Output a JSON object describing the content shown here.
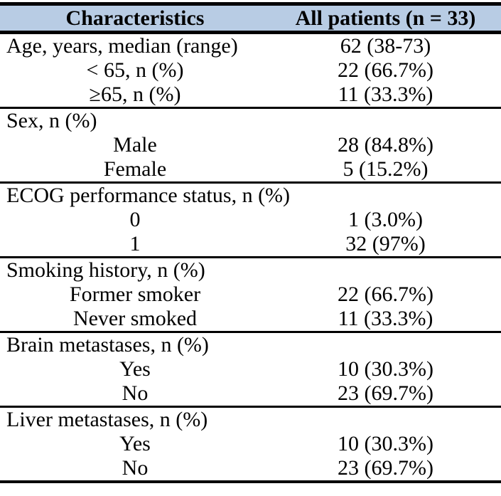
{
  "table": {
    "header": {
      "characteristics": "Characteristics",
      "all_patients": "All patients (n = 33)"
    },
    "colors": {
      "header_bg": "#b8cce4",
      "border": "#000000",
      "text": "#000000",
      "background": "#ffffff"
    },
    "sections": [
      {
        "rows": [
          {
            "label": "Age, years, median (range)",
            "value": "62 (38-73)"
          },
          {
            "label": "< 65, n (%)",
            "value": "22 (66.7%)"
          },
          {
            "label": "≥65, n (%)",
            "value": "11 (33.3%)"
          }
        ]
      },
      {
        "rows": [
          {
            "label": "Sex, n (%)",
            "value": ""
          },
          {
            "label": "Male",
            "value": "28 (84.8%)"
          },
          {
            "label": "Female",
            "value": "5 (15.2%)"
          }
        ]
      },
      {
        "rows": [
          {
            "label": "ECOG performance status, n (%)",
            "value": ""
          },
          {
            "label": "0",
            "value": "1 (3.0%)"
          },
          {
            "label": "1",
            "value": "32 (97%)"
          }
        ]
      },
      {
        "rows": [
          {
            "label": "Smoking history, n (%)",
            "value": ""
          },
          {
            "label": "Former smoker",
            "value": "22 (66.7%)"
          },
          {
            "label": "Never smoked",
            "value": "11 (33.3%)"
          }
        ]
      },
      {
        "rows": [
          {
            "label": "Brain metastases, n (%)",
            "value": ""
          },
          {
            "label": "Yes",
            "value": "10 (30.3%)"
          },
          {
            "label": "No",
            "value": "23 (69.7%)"
          }
        ]
      },
      {
        "rows": [
          {
            "label": "Liver metastases, n (%)",
            "value": ""
          },
          {
            "label": "Yes",
            "value": "10 (30.3%)"
          },
          {
            "label": "No",
            "value": "23 (69.7%)"
          }
        ]
      }
    ]
  }
}
